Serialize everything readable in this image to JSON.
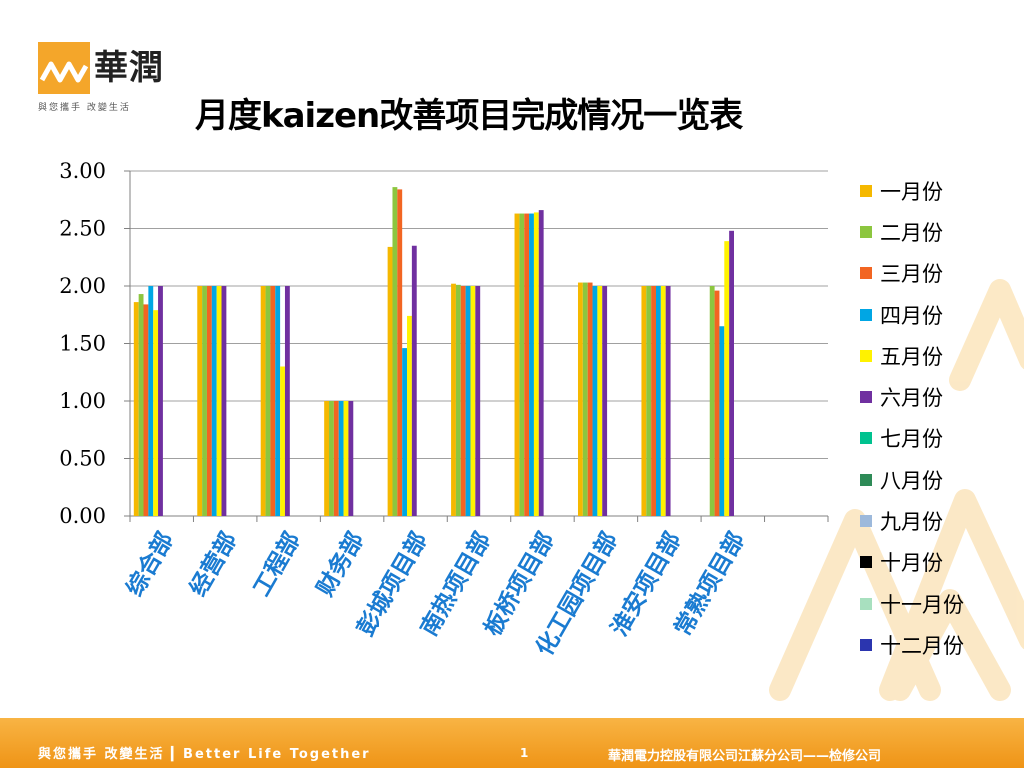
{
  "header": {
    "logo_name": "華潤",
    "logo_slogan": "與您攜手 改變生活",
    "title": "月度kaizen改善项目完成情况一览表"
  },
  "colors": {
    "brand_orange": "#F4A62A",
    "footer_orange": "#EF9416",
    "tick_blue": "#1A7BD1"
  },
  "chart_data": {
    "type": "bar",
    "title": "",
    "xlabel": "",
    "ylabel": "",
    "ylim": [
      0,
      3
    ],
    "yticks": [
      "0.00",
      "0.50",
      "1.00",
      "1.50",
      "2.00",
      "2.50",
      "3.00"
    ],
    "ytick_values": [
      0,
      0.5,
      1,
      1.5,
      2,
      2.5,
      3
    ],
    "grid": true,
    "legend_position": "right",
    "categories": [
      "综合部",
      "经营部",
      "工程部",
      "财务部",
      "彭城项目部",
      "南热项目部",
      "板桥项目部",
      "化工园项目部",
      "淮安项目部",
      "常熟项目部",
      ""
    ],
    "series": [
      {
        "name": "一月份",
        "color": "#F5B800",
        "values": [
          1.86,
          2.0,
          2.0,
          1.0,
          2.34,
          2.02,
          2.63,
          2.03,
          2.0,
          null,
          null
        ]
      },
      {
        "name": "二月份",
        "color": "#8CC63F",
        "values": [
          1.93,
          2.0,
          2.0,
          1.0,
          2.86,
          2.01,
          2.63,
          2.03,
          2.0,
          2.0,
          null
        ]
      },
      {
        "name": "三月份",
        "color": "#F26522",
        "values": [
          1.84,
          2.0,
          2.0,
          1.0,
          2.84,
          2.0,
          2.63,
          2.03,
          2.0,
          1.96,
          null
        ]
      },
      {
        "name": "四月份",
        "color": "#00A6E4",
        "values": [
          2.0,
          2.0,
          2.0,
          1.0,
          1.46,
          2.0,
          2.63,
          2.0,
          2.0,
          1.65,
          null
        ]
      },
      {
        "name": "五月份",
        "color": "#FFF200",
        "values": [
          1.79,
          2.0,
          1.3,
          1.0,
          1.74,
          2.0,
          2.64,
          2.0,
          2.0,
          2.39,
          null
        ]
      },
      {
        "name": "六月份",
        "color": "#7030A0",
        "values": [
          2.0,
          2.0,
          2.0,
          1.0,
          2.35,
          2.0,
          2.66,
          2.0,
          2.0,
          2.48,
          null
        ]
      },
      {
        "name": "七月份",
        "color": "#00C28F",
        "values": [
          null,
          null,
          null,
          null,
          null,
          null,
          null,
          null,
          null,
          null,
          null
        ]
      },
      {
        "name": "八月份",
        "color": "#2E8B57",
        "values": [
          null,
          null,
          null,
          null,
          null,
          null,
          null,
          null,
          null,
          null,
          null
        ]
      },
      {
        "name": "九月份",
        "color": "#9DB9DB",
        "values": [
          null,
          null,
          null,
          null,
          null,
          null,
          null,
          null,
          null,
          null,
          null
        ]
      },
      {
        "name": "十月份",
        "color": "#000000",
        "values": [
          null,
          null,
          null,
          null,
          null,
          null,
          null,
          null,
          null,
          null,
          null
        ]
      },
      {
        "name": "十一月份",
        "color": "#A8E0BF",
        "values": [
          null,
          null,
          null,
          null,
          null,
          null,
          null,
          null,
          null,
          null,
          null
        ]
      },
      {
        "name": "十二月份",
        "color": "#2B35AF",
        "values": [
          null,
          null,
          null,
          null,
          null,
          null,
          null,
          null,
          null,
          null,
          null
        ]
      }
    ]
  },
  "footer": {
    "slogan": "與您攜手 改變生活 ▎Better Life Together",
    "page_number": "1",
    "company": "華潤電力控股有限公司江蘇分公司——检修公司"
  }
}
